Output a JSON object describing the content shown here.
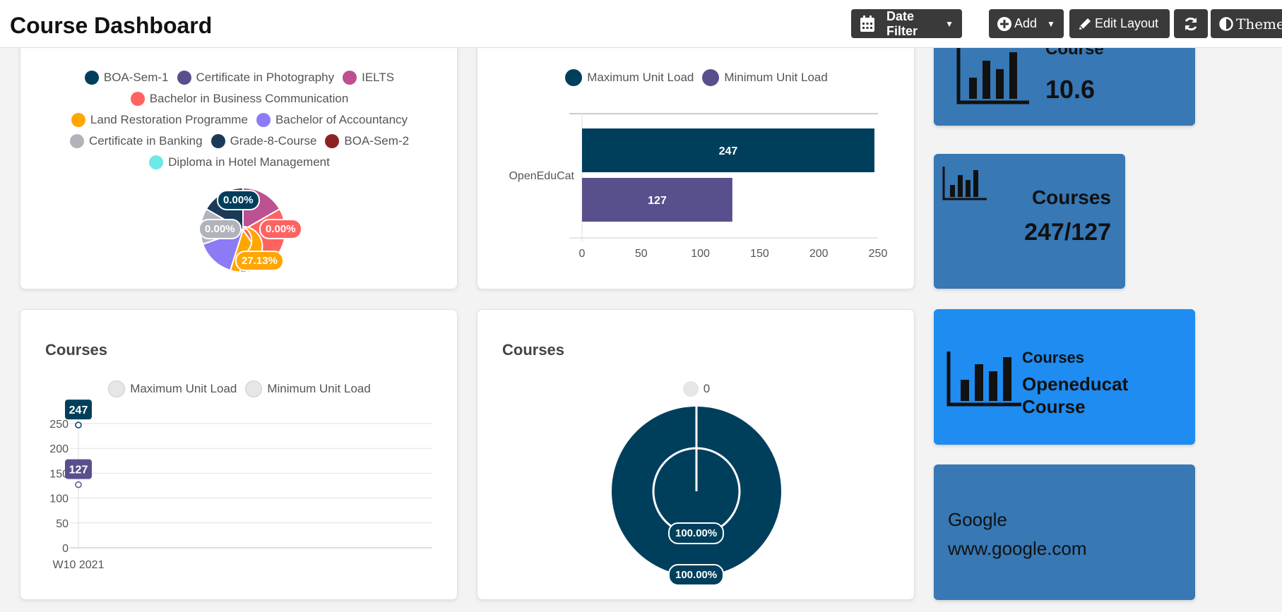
{
  "header": {
    "title": "Course Dashboard",
    "date_filter": "Date Filter",
    "add": "Add",
    "edit_layout": "Edit Layout",
    "theme": "Theme"
  },
  "pie_card": {
    "legend": [
      {
        "label": "BOA-Sem-1",
        "color": "#003f5c"
      },
      {
        "label": "Certificate in Photography",
        "color": "#58508d"
      },
      {
        "label": "IELTS",
        "color": "#bc5090"
      },
      {
        "label": "Bachelor in Business Communication",
        "color": "#ff6361"
      },
      {
        "label": "Land Restoration Programme",
        "color": "#ffa600"
      },
      {
        "label": "Bachelor of Accountancy",
        "color": "#8b7cf6"
      },
      {
        "label": "Certificate in Banking",
        "color": "#b0b3ba"
      },
      {
        "label": "Grade-8-Course",
        "color": "#1b3a57"
      },
      {
        "label": "BOA-Sem-2",
        "color": "#8b2323"
      },
      {
        "label": "Diploma in Hotel Management",
        "color": "#6ee7e7"
      }
    ],
    "labels": [
      "0.00%",
      "0.00%",
      "0.00%",
      "27.13%"
    ]
  },
  "bar_card": {
    "legend": [
      {
        "label": "Maximum Unit Load",
        "color": "#003f5c"
      },
      {
        "label": "Minimum Unit Load",
        "color": "#58508d"
      }
    ]
  },
  "line_card": {
    "title": "Courses",
    "legend": [
      {
        "label": "Maximum Unit Load",
        "color": "#e6e6e6"
      },
      {
        "label": "Minimum Unit Load",
        "color": "#e6e6e6"
      }
    ]
  },
  "donut_card": {
    "title": "Courses",
    "legend_label": "0",
    "labels": [
      "100.00%",
      "100.00%"
    ]
  },
  "tiles": {
    "tile1": {
      "title": "Course",
      "value": "10.6"
    },
    "tile2": {
      "title": "Courses",
      "value": "247/127"
    },
    "tile3": {
      "title": "Courses",
      "line1": "Openeducat",
      "line2": "Course"
    },
    "tile4": {
      "line1": "Google",
      "line2": "www.google.com"
    }
  },
  "chart_data": [
    {
      "type": "bar",
      "orientation": "horizontal",
      "categories": [
        "OpenEduCat"
      ],
      "series": [
        {
          "name": "Maximum Unit Load",
          "values": [
            247
          ]
        },
        {
          "name": "Minimum Unit Load",
          "values": [
            127
          ]
        }
      ],
      "xlim": [
        0,
        250
      ],
      "xticks": [
        "0",
        "50",
        "100",
        "150",
        "200",
        "250"
      ]
    },
    {
      "type": "line",
      "title": "Courses",
      "x": [
        "W10 2021"
      ],
      "series": [
        {
          "name": "Maximum Unit Load",
          "values": [
            247
          ]
        },
        {
          "name": "Minimum Unit Load",
          "values": [
            127
          ]
        }
      ],
      "ylim": [
        0,
        250
      ],
      "yticks": [
        "0",
        "50",
        "100",
        "150",
        "200",
        "250"
      ]
    }
  ]
}
